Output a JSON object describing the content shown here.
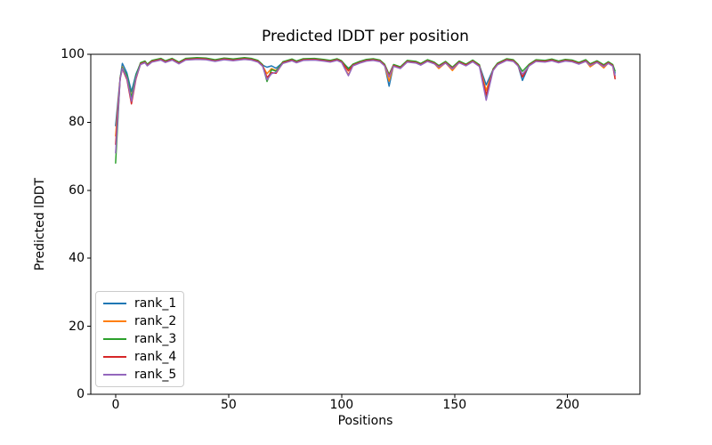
{
  "chart_data": {
    "type": "line",
    "title": "Predicted lDDT per position",
    "xlabel": "Positions",
    "ylabel": "Predicted lDDT",
    "xlim": [
      -11,
      232
    ],
    "ylim": [
      0,
      100
    ],
    "xticks": [
      0,
      50,
      100,
      150,
      200
    ],
    "yticks": [
      0,
      20,
      40,
      60,
      80,
      100
    ],
    "grid": false,
    "legend_position": "lower-left",
    "x": [
      0,
      2,
      3,
      5,
      7,
      9,
      11,
      13,
      14,
      16,
      20,
      22,
      25,
      28,
      31,
      36,
      40,
      44,
      48,
      52,
      57,
      60,
      63,
      65,
      67,
      69,
      71,
      74,
      78,
      80,
      83,
      88,
      92,
      95,
      98,
      100,
      103,
      105,
      108,
      111,
      114,
      117,
      119,
      121,
      123,
      126,
      129,
      133,
      135,
      138,
      141,
      143,
      146,
      149,
      152,
      155,
      158,
      161,
      164,
      167,
      169,
      173,
      176,
      178,
      180,
      183,
      186,
      190,
      193,
      196,
      199,
      202,
      205,
      208,
      210,
      213,
      216,
      218,
      220,
      221
    ],
    "series": [
      {
        "name": "rank_1",
        "color": "#1f77b4",
        "values": [
          79,
          93,
          97.3,
          94.5,
          89,
          94.2,
          97.3,
          97.8,
          96.9,
          98,
          98.6,
          97.9,
          98.6,
          97.5,
          98.6,
          98.8,
          98.7,
          98.2,
          98.7,
          98.4,
          98.8,
          98.6,
          98,
          96.8,
          96.2,
          96.6,
          95.9,
          97.6,
          98.4,
          97.8,
          98.5,
          98.6,
          98.3,
          98,
          98.5,
          97.9,
          95.9,
          96.9,
          97.7,
          98.3,
          98.5,
          98.1,
          96.9,
          90.6,
          96.8,
          96.1,
          98,
          97.7,
          97.1,
          98.2,
          97.5,
          96.5,
          97.7,
          96,
          97.8,
          96.9,
          98.1,
          96.7,
          91,
          95.5,
          97.2,
          98.5,
          98.2,
          96.9,
          92.3,
          96.9,
          98.2,
          98,
          98.4,
          97.8,
          98.3,
          98.1,
          97.4,
          98.2,
          97,
          97.9,
          96.7,
          97.6,
          96.8,
          94.5
        ]
      },
      {
        "name": "rank_2",
        "color": "#ff7f0e",
        "values": [
          76,
          92.8,
          96.3,
          93.3,
          87.6,
          93.3,
          97.1,
          97.6,
          96.7,
          97.8,
          98.4,
          97.7,
          98.4,
          97.3,
          98.4,
          98.6,
          98.5,
          98,
          98.5,
          98.2,
          98.6,
          98.4,
          97.8,
          96.6,
          94.3,
          95.8,
          95.2,
          97.4,
          98.2,
          97.6,
          98.3,
          98.4,
          98.1,
          97.8,
          98.3,
          97.7,
          94,
          96.7,
          97.5,
          98.1,
          98.3,
          97.9,
          96.7,
          92.1,
          96.6,
          95.9,
          97.8,
          97.5,
          96.9,
          98,
          97.3,
          95.8,
          97.5,
          95.2,
          97.6,
          96.7,
          97.9,
          96.5,
          89.4,
          95.3,
          97,
          98.3,
          98,
          96.7,
          93.8,
          96.7,
          98,
          97.8,
          98.2,
          97.6,
          98.1,
          97.9,
          97.2,
          98,
          96.3,
          97.7,
          96,
          97.4,
          96.6,
          93.4
        ]
      },
      {
        "name": "rank_3",
        "color": "#2ca02c",
        "values": [
          68,
          93.2,
          96.1,
          93.8,
          87.2,
          93.8,
          97.5,
          98,
          97.1,
          98.2,
          98.8,
          98.1,
          98.8,
          97.7,
          98.8,
          99,
          98.9,
          98.4,
          98.9,
          98.6,
          99,
          98.8,
          98.2,
          97,
          92,
          95.5,
          95,
          97.8,
          98.6,
          98,
          98.7,
          98.8,
          98.5,
          98.2,
          98.7,
          98.1,
          95.7,
          97.1,
          97.9,
          98.5,
          98.7,
          98.3,
          97.1,
          94.1,
          97,
          96.3,
          98.2,
          97.9,
          97.3,
          98.4,
          97.7,
          96.7,
          97.9,
          96.2,
          98,
          97.1,
          98.3,
          96.9,
          87.1,
          95.7,
          97.4,
          98.7,
          98.4,
          97.1,
          95,
          97.1,
          98.4,
          98.2,
          98.6,
          98,
          98.5,
          98.3,
          97.6,
          98.4,
          97.2,
          98.1,
          96.9,
          97.8,
          97,
          95.1
        ]
      },
      {
        "name": "rank_4",
        "color": "#d62728",
        "values": [
          73.5,
          92.9,
          95.7,
          92.6,
          85.4,
          92.8,
          97.2,
          97.7,
          96.8,
          97.9,
          98.5,
          97.8,
          98.5,
          97.4,
          98.5,
          98.7,
          98.6,
          98.1,
          98.6,
          98.3,
          98.7,
          98.5,
          97.9,
          96.7,
          93.2,
          94.6,
          94.4,
          97.5,
          98.3,
          97.7,
          98.4,
          98.5,
          98.2,
          97.9,
          98.4,
          97.8,
          95.1,
          96.8,
          97.6,
          98.2,
          98.4,
          98,
          96.8,
          93.7,
          96.7,
          96,
          97.9,
          97.6,
          97,
          98.1,
          97.4,
          96.4,
          97.6,
          95.9,
          97.7,
          96.8,
          98,
          96.6,
          88.1,
          95.4,
          97.1,
          98.4,
          98.1,
          96.8,
          93.3,
          96.8,
          98.1,
          97.9,
          98.3,
          97.7,
          98.2,
          98,
          97.3,
          98.1,
          96.9,
          97.8,
          96.6,
          97.5,
          96.7,
          92.8
        ]
      },
      {
        "name": "rank_5",
        "color": "#9467bd",
        "values": [
          71,
          92.7,
          95.9,
          93,
          86.2,
          93.2,
          97,
          97.5,
          96.6,
          97.7,
          98.3,
          97.6,
          98.3,
          97.2,
          98.3,
          98.5,
          98.4,
          97.9,
          98.4,
          98.1,
          98.5,
          98.3,
          97.7,
          96.5,
          92.5,
          94.3,
          94.7,
          97.3,
          98.1,
          97.5,
          98.2,
          98.3,
          98,
          97.7,
          98.2,
          97.6,
          93.7,
          96.6,
          97.4,
          98,
          98.2,
          97.8,
          96.6,
          93.3,
          96.5,
          95.8,
          97.7,
          97.4,
          96.8,
          97.9,
          97.2,
          96.2,
          97.4,
          95.7,
          97.5,
          96.6,
          97.8,
          96.4,
          86.5,
          95.2,
          96.9,
          98.2,
          97.9,
          96.6,
          94.1,
          96.6,
          97.9,
          97.7,
          98.1,
          97.5,
          98,
          97.8,
          97.1,
          97.9,
          96.7,
          97.6,
          96.4,
          97.3,
          96.5,
          93.8
        ]
      }
    ]
  }
}
